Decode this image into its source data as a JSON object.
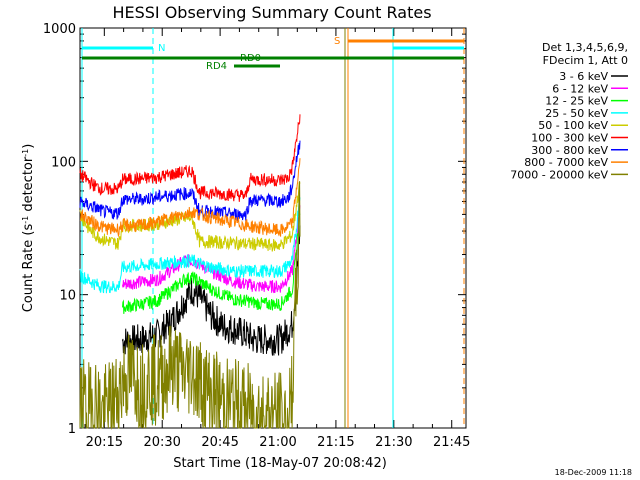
{
  "chart_data": {
    "type": "line",
    "title": "HESSI Observing Summary Count Rates",
    "xlabel": "Start Time (18-May-07 20:08:42)",
    "ylabel_main": "Count Rate (s",
    "ylabel_sup1": "-1",
    "ylabel_mid": " detector",
    "ylabel_sup2": "-1",
    "ylabel_end": ")",
    "y_scale": "log",
    "ylim": [
      1,
      1000
    ],
    "xlim_minutes": [
      0,
      100
    ],
    "x_ticks": [
      "20:15",
      "20:30",
      "20:45",
      "21:00",
      "21:15",
      "21:30",
      "21:45"
    ],
    "y_ticks": [
      "1",
      "10",
      "100",
      "1000"
    ],
    "legend": {
      "header": [
        "Det 1,3,4,5,6,9,",
        "FDecim 1, Att 0"
      ],
      "entries": [
        {
          "label": "3 - 6 keV",
          "color": "#000000"
        },
        {
          "label": "6 - 12 keV",
          "color": "#ff00ff"
        },
        {
          "label": "12 - 25 keV",
          "color": "#00ff00"
        },
        {
          "label": "25 - 50 keV",
          "color": "#00ffff"
        },
        {
          "label": "50 - 100 keV",
          "color": "#cccc00"
        },
        {
          "label": "100 - 300 keV",
          "color": "#ff0000"
        },
        {
          "label": "300 - 800 keV",
          "color": "#0000ff"
        },
        {
          "label": "800 - 7000 keV",
          "color": "#ff8000"
        },
        {
          "label": "7000 - 20000 keV",
          "color": "#808000"
        }
      ]
    },
    "series": [
      {
        "band": "3 - 6 keV",
        "color": "#000000",
        "points": [
          [
            11,
            4.5
          ],
          [
            16,
            4.6
          ],
          [
            20,
            5
          ],
          [
            24,
            6.5
          ],
          [
            27,
            9
          ],
          [
            29,
            11
          ],
          [
            31,
            9.5
          ],
          [
            34,
            7
          ],
          [
            37,
            5.8
          ],
          [
            40,
            5.5
          ],
          [
            43,
            5
          ],
          [
            45,
            4.6
          ],
          [
            49,
            4.6
          ],
          [
            52,
            4.6
          ],
          [
            55,
            6
          ],
          [
            56,
            12
          ],
          [
            57,
            30
          ]
        ]
      },
      {
        "band": "6 - 12 keV",
        "color": "#ff00ff",
        "points": [
          [
            11,
            12
          ],
          [
            16,
            12.5
          ],
          [
            20,
            13
          ],
          [
            24,
            15.5
          ],
          [
            27,
            18
          ],
          [
            29,
            18
          ],
          [
            31,
            17
          ],
          [
            34,
            15
          ],
          [
            37,
            13.5
          ],
          [
            40,
            12.5
          ],
          [
            43,
            12
          ],
          [
            46,
            11.5
          ],
          [
            49,
            11.5
          ],
          [
            52,
            11.5
          ],
          [
            55,
            15
          ],
          [
            56,
            25
          ],
          [
            57,
            50
          ]
        ]
      },
      {
        "band": "12 - 25 keV",
        "color": "#00ff00",
        "points": [
          [
            11,
            8
          ],
          [
            16,
            8.5
          ],
          [
            20,
            9
          ],
          [
            24,
            11
          ],
          [
            27,
            13
          ],
          [
            29,
            13.5
          ],
          [
            31,
            12.5
          ],
          [
            34,
            11
          ],
          [
            37,
            10
          ],
          [
            40,
            9.2
          ],
          [
            43,
            9
          ],
          [
            46,
            8.6
          ],
          [
            49,
            8.5
          ],
          [
            52,
            8.5
          ],
          [
            55,
            11
          ],
          [
            56,
            20
          ],
          [
            57,
            45
          ]
        ]
      },
      {
        "band": "25 - 50 keV",
        "color": "#00ffff",
        "points": [
          [
            0,
            14
          ],
          [
            2,
            13
          ],
          [
            4,
            12
          ],
          [
            6,
            11.5
          ],
          [
            8,
            11.5
          ],
          [
            10,
            11.5
          ],
          [
            11,
            16
          ],
          [
            16,
            16.5
          ],
          [
            20,
            17
          ],
          [
            24,
            17.5
          ],
          [
            29,
            18
          ],
          [
            31,
            17
          ],
          [
            34,
            16
          ],
          [
            37,
            15.5
          ],
          [
            40,
            15
          ],
          [
            43,
            15
          ],
          [
            46,
            15
          ],
          [
            49,
            15
          ],
          [
            52,
            15
          ],
          [
            55,
            18
          ],
          [
            56,
            30
          ],
          [
            57,
            60
          ]
        ]
      },
      {
        "band": "50 - 100 keV",
        "color": "#cccc00",
        "points": [
          [
            0,
            40
          ],
          [
            2,
            32
          ],
          [
            4,
            28
          ],
          [
            6,
            26
          ],
          [
            8,
            25
          ],
          [
            10,
            24
          ],
          [
            11,
            33
          ],
          [
            16,
            33
          ],
          [
            20,
            34
          ],
          [
            24,
            36
          ],
          [
            29,
            38
          ],
          [
            31,
            25
          ],
          [
            34,
            25
          ],
          [
            37,
            24.5
          ],
          [
            40,
            24.5
          ],
          [
            43,
            24
          ],
          [
            46,
            24
          ],
          [
            49,
            23.5
          ],
          [
            52,
            23.5
          ],
          [
            55,
            28
          ],
          [
            56,
            45
          ],
          [
            57,
            70
          ]
        ]
      },
      {
        "band": "100 - 300 keV",
        "color": "#ff0000",
        "points": [
          [
            0,
            80
          ],
          [
            2,
            72
          ],
          [
            4,
            65
          ],
          [
            6,
            62
          ],
          [
            8,
            62
          ],
          [
            10,
            62
          ],
          [
            11,
            73
          ],
          [
            16,
            74
          ],
          [
            20,
            76
          ],
          [
            24,
            80
          ],
          [
            29,
            85
          ],
          [
            31,
            58
          ],
          [
            34,
            58
          ],
          [
            37,
            57
          ],
          [
            40,
            56
          ],
          [
            43,
            55
          ],
          [
            44,
            73
          ],
          [
            48,
            73
          ],
          [
            52,
            72
          ],
          [
            54,
            75
          ],
          [
            55,
            90
          ],
          [
            56,
            140
          ],
          [
            57,
            215
          ]
        ]
      },
      {
        "band": "300 - 800 keV",
        "color": "#0000ff",
        "points": [
          [
            0,
            50
          ],
          [
            2,
            47
          ],
          [
            4,
            45
          ],
          [
            6,
            42
          ],
          [
            8,
            41
          ],
          [
            10,
            41
          ],
          [
            11,
            52
          ],
          [
            16,
            52
          ],
          [
            20,
            54
          ],
          [
            24,
            56
          ],
          [
            29,
            58
          ],
          [
            31,
            42
          ],
          [
            34,
            42
          ],
          [
            37,
            41
          ],
          [
            40,
            40
          ],
          [
            43,
            40
          ],
          [
            44,
            51
          ],
          [
            48,
            51
          ],
          [
            52,
            50
          ],
          [
            54,
            53
          ],
          [
            55,
            65
          ],
          [
            56,
            100
          ],
          [
            57,
            140
          ]
        ]
      },
      {
        "band": "800 - 7000 keV",
        "color": "#ff8000",
        "points": [
          [
            0,
            40
          ],
          [
            2,
            37
          ],
          [
            4,
            34
          ],
          [
            6,
            32
          ],
          [
            8,
            31
          ],
          [
            10,
            31
          ],
          [
            11,
            33
          ],
          [
            16,
            33
          ],
          [
            20,
            35
          ],
          [
            24,
            38
          ],
          [
            29,
            42
          ],
          [
            31,
            40
          ],
          [
            34,
            38
          ],
          [
            37,
            36
          ],
          [
            40,
            35
          ],
          [
            43,
            33
          ],
          [
            46,
            32
          ],
          [
            49,
            31
          ],
          [
            52,
            30
          ],
          [
            55,
            34
          ],
          [
            56,
            60
          ],
          [
            57,
            100
          ]
        ]
      },
      {
        "band": "7000 - 20000 keV",
        "color": "#808000",
        "points": [
          [
            0,
            1.6
          ],
          [
            2,
            1.4
          ],
          [
            4,
            1.6
          ],
          [
            6,
            1.3
          ],
          [
            8,
            1.5
          ],
          [
            10,
            1.8
          ],
          [
            11,
            2.3
          ],
          [
            14,
            2.5
          ],
          [
            16,
            2.0
          ],
          [
            18,
            2.4
          ],
          [
            20,
            2.2
          ],
          [
            22,
            2.6
          ],
          [
            24,
            3
          ],
          [
            27,
            2.5
          ],
          [
            29,
            2.8
          ],
          [
            31,
            2.2
          ],
          [
            34,
            1.8
          ],
          [
            37,
            1.6
          ],
          [
            40,
            1.5
          ],
          [
            43,
            1.4
          ],
          [
            46,
            1.3
          ],
          [
            49,
            1.3
          ],
          [
            52,
            1.2
          ],
          [
            54,
            1.0
          ],
          [
            55,
            2
          ],
          [
            56,
            10
          ],
          [
            57,
            40
          ]
        ]
      }
    ],
    "annotations": [
      {
        "label": "N",
        "color": "#00ffff"
      },
      {
        "label": "RD0",
        "color": "#008000"
      },
      {
        "label": "RD4",
        "color": "#008000"
      },
      {
        "label": "S",
        "color": "#ff8000"
      }
    ],
    "timestamp": "18-Dec-2009 11:18"
  }
}
